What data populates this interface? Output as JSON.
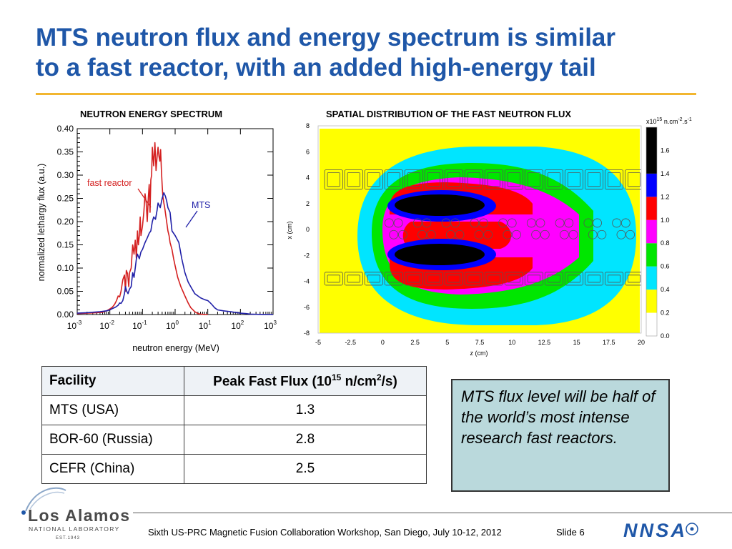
{
  "slide": {
    "title_line1": "MTS neutron flux and energy spectrum is similar",
    "title_line2": "to a fast reactor, with an added high-energy tail"
  },
  "chart_data": [
    {
      "type": "line",
      "title": "NEUTRON ENERGY SPECTRUM",
      "xlabel": "neutron energy (MeV)",
      "ylabel": "normalized lethargy flux (a.u.)",
      "xscale": "log",
      "xlim": [
        0.001,
        1000
      ],
      "ylim": [
        0,
        0.4
      ],
      "xticks": [
        {
          "base": "10",
          "exp": "-3"
        },
        {
          "base": "10",
          "exp": "-2"
        },
        {
          "base": "10",
          "exp": "-1"
        },
        {
          "base": "10",
          "exp": "0"
        },
        {
          "base": "10",
          "exp": "1"
        },
        {
          "base": "10",
          "exp": "2"
        },
        {
          "base": "10",
          "exp": "3"
        }
      ],
      "yticks": [
        "0.00",
        "0.05",
        "0.10",
        "0.15",
        "0.20",
        "0.25",
        "0.30",
        "0.35",
        "0.40"
      ],
      "series": [
        {
          "name": "fast reactor",
          "color": "#d42020",
          "x": [
            0.001,
            0.002,
            0.004,
            0.006,
            0.008,
            0.01,
            0.012,
            0.014,
            0.016,
            0.018,
            0.02,
            0.022,
            0.025,
            0.028,
            0.03,
            0.032,
            0.035,
            0.038,
            0.04,
            0.045,
            0.05,
            0.055,
            0.06,
            0.065,
            0.07,
            0.075,
            0.08,
            0.085,
            0.09,
            0.1,
            0.11,
            0.12,
            0.13,
            0.14,
            0.15,
            0.16,
            0.17,
            0.18,
            0.19,
            0.2,
            0.22,
            0.24,
            0.26,
            0.28,
            0.3,
            0.32,
            0.34,
            0.36,
            0.38,
            0.4,
            0.42,
            0.45,
            0.48,
            0.5,
            0.55,
            0.6,
            0.65,
            0.7,
            0.8,
            0.9,
            1.0,
            1.2,
            1.5,
            2.0,
            2.5,
            3.0,
            4.0,
            5.0,
            6.0,
            7.0,
            8.0,
            10.0
          ],
          "y": [
            0.002,
            0.003,
            0.004,
            0.005,
            0.008,
            0.012,
            0.016,
            0.022,
            0.03,
            0.04,
            0.038,
            0.05,
            0.075,
            0.085,
            0.05,
            0.095,
            0.088,
            0.06,
            0.09,
            0.1,
            0.15,
            0.13,
            0.16,
            0.12,
            0.18,
            0.15,
            0.17,
            0.21,
            0.17,
            0.19,
            0.22,
            0.26,
            0.24,
            0.2,
            0.25,
            0.28,
            0.22,
            0.29,
            0.3,
            0.36,
            0.32,
            0.37,
            0.31,
            0.34,
            0.36,
            0.34,
            0.33,
            0.355,
            0.31,
            0.28,
            0.255,
            0.24,
            0.23,
            0.22,
            0.2,
            0.18,
            0.17,
            0.155,
            0.14,
            0.12,
            0.105,
            0.08,
            0.06,
            0.04,
            0.025,
            0.015,
            0.006,
            0.002,
            0.001,
            0.0005,
            0.0002,
            0.0
          ]
        },
        {
          "name": "MTS",
          "color": "#2020a8",
          "x": [
            0.001,
            0.002,
            0.003,
            0.005,
            0.008,
            0.01,
            0.012,
            0.015,
            0.018,
            0.02,
            0.022,
            0.025,
            0.028,
            0.03,
            0.033,
            0.036,
            0.04,
            0.045,
            0.05,
            0.055,
            0.06,
            0.065,
            0.07,
            0.08,
            0.09,
            0.1,
            0.12,
            0.14,
            0.16,
            0.18,
            0.2,
            0.22,
            0.25,
            0.28,
            0.3,
            0.35,
            0.4,
            0.45,
            0.5,
            0.55,
            0.6,
            0.7,
            0.8,
            1.0,
            1.3,
            1.6,
            2.0,
            2.5,
            3.0,
            4.0,
            5.0,
            6.0,
            8.0,
            10.0,
            12.0,
            14.0,
            16.0,
            20.0,
            30.0,
            50.0,
            80.0,
            100.0,
            150.0,
            200.0,
            300.0,
            500.0,
            1000.0
          ],
          "y": [
            0.003,
            0.004,
            0.005,
            0.006,
            0.008,
            0.01,
            0.013,
            0.016,
            0.02,
            0.025,
            0.024,
            0.03,
            0.045,
            0.06,
            0.05,
            0.045,
            0.055,
            0.06,
            0.09,
            0.08,
            0.1,
            0.12,
            0.13,
            0.12,
            0.135,
            0.14,
            0.155,
            0.165,
            0.175,
            0.18,
            0.2,
            0.21,
            0.205,
            0.225,
            0.24,
            0.23,
            0.25,
            0.262,
            0.255,
            0.245,
            0.23,
            0.22,
            0.18,
            0.17,
            0.155,
            0.12,
            0.09,
            0.07,
            0.06,
            0.045,
            0.04,
            0.036,
            0.032,
            0.03,
            0.025,
            0.02,
            0.015,
            0.01,
            0.008,
            0.006,
            0.004,
            0.003,
            0.002,
            0.001,
            0.0005,
            0.0002,
            0.0
          ]
        }
      ]
    },
    {
      "type": "heatmap",
      "title": "SPATIAL DISTRIBUTION OF THE FAST NEUTRON FLUX",
      "xlabel": "z (cm)",
      "ylabel": "x (cm)",
      "xlim": [
        -5,
        20
      ],
      "ylim": [
        -8,
        8
      ],
      "xticks": [
        "-5",
        "-2.5",
        "0",
        "2.5",
        "5",
        "7.5",
        "10",
        "12.5",
        "15",
        "17.5",
        "20"
      ],
      "yticks": [
        "-8",
        "-6",
        "-4",
        "-2",
        "0",
        "2",
        "4",
        "6",
        "8"
      ],
      "colorbar": {
        "unit_prefix": "x10",
        "unit_exp": "15",
        "unit_rest": " n.cm",
        "unit_exp2": "-2",
        "unit_rest2": ".s",
        "unit_exp3": "-1",
        "ticks": [
          "0.0",
          "0.2",
          "0.4",
          "0.6",
          "0.8",
          "1.0",
          "1.2",
          "1.4",
          "1.6"
        ],
        "range": [
          0,
          1.8
        ],
        "levels": [
          {
            "from": 0.0,
            "to": 0.2,
            "color": "#ffffff"
          },
          {
            "from": 0.2,
            "to": 0.4,
            "color": "#ffff00"
          },
          {
            "from": 0.4,
            "to": 0.6,
            "color": "#00e5ff"
          },
          {
            "from": 0.6,
            "to": 0.8,
            "color": "#00e600"
          },
          {
            "from": 0.8,
            "to": 1.0,
            "color": "#ff00ff"
          },
          {
            "from": 1.0,
            "to": 1.2,
            "color": "#ff0000"
          },
          {
            "from": 1.2,
            "to": 1.4,
            "color": "#0000ff"
          },
          {
            "from": 1.4,
            "to": 1.8,
            "color": "#000000"
          }
        ]
      }
    }
  ],
  "table": {
    "headers": {
      "facility": "Facility",
      "peak_prefix": "Peak Fast Flux (10",
      "peak_exp": "15",
      "peak_mid": " n/cm",
      "peak_exp2": "2",
      "peak_suffix": "/s)"
    },
    "rows": [
      {
        "facility": "MTS (USA)",
        "value": "1.3"
      },
      {
        "facility": "BOR-60 (Russia)",
        "value": "2.8"
      },
      {
        "facility": "CEFR (China)",
        "value": "2.5"
      }
    ]
  },
  "callout": {
    "text": "MTS flux level will be half of the world’s most intense research fast reactors."
  },
  "footer": {
    "text": "Sixth US-PRC Magnetic Fusion Collaboration Workshop, San Diego, July 10-12, 2012",
    "slide_label": "Slide 6"
  },
  "logos": {
    "lanl_name": "Los Alamos",
    "lanl_sub": "NATIONAL LABORATORY",
    "lanl_est": "EST.1943",
    "nnsa": "NNSA"
  }
}
